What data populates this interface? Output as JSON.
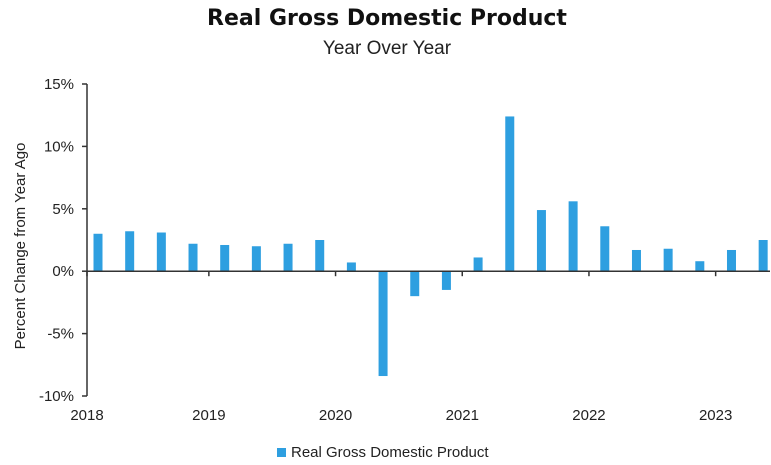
{
  "chart_data": {
    "type": "bar",
    "title": "Real Gross Domestic Product",
    "subtitle": "Year Over Year",
    "ylabel": "Percent Change from Year Ago",
    "xlabel": "",
    "ylim": [
      -10,
      15
    ],
    "yticks": [
      {
        "value": 15,
        "label": "15%"
      },
      {
        "value": 10,
        "label": "10%"
      },
      {
        "value": 5,
        "label": "5%"
      },
      {
        "value": 0,
        "label": "0%"
      },
      {
        "value": -5,
        "label": "-5%"
      },
      {
        "value": -10,
        "label": "-10%"
      }
    ],
    "xticks": [
      "2018",
      "2019",
      "2020",
      "2021",
      "2022",
      "2023"
    ],
    "categories": [
      "2018Q1",
      "2018Q2",
      "2018Q3",
      "2018Q4",
      "2019Q1",
      "2019Q2",
      "2019Q3",
      "2019Q4",
      "2020Q1",
      "2020Q2",
      "2020Q3",
      "2020Q4",
      "2021Q1",
      "2021Q2",
      "2021Q3",
      "2021Q4",
      "2022Q1",
      "2022Q2",
      "2022Q3",
      "2022Q4",
      "2023Q1",
      "2023Q2"
    ],
    "series": [
      {
        "name": "Real Gross Domestic Product",
        "color": "#2e9fe0",
        "values": [
          3.0,
          3.2,
          3.1,
          2.2,
          2.1,
          2.0,
          2.2,
          2.5,
          0.7,
          -8.4,
          -2.0,
          -1.5,
          1.1,
          12.4,
          4.9,
          5.6,
          3.6,
          1.7,
          1.8,
          0.8,
          1.7,
          2.5
        ]
      }
    ],
    "grid": false,
    "legend": "bottom"
  }
}
